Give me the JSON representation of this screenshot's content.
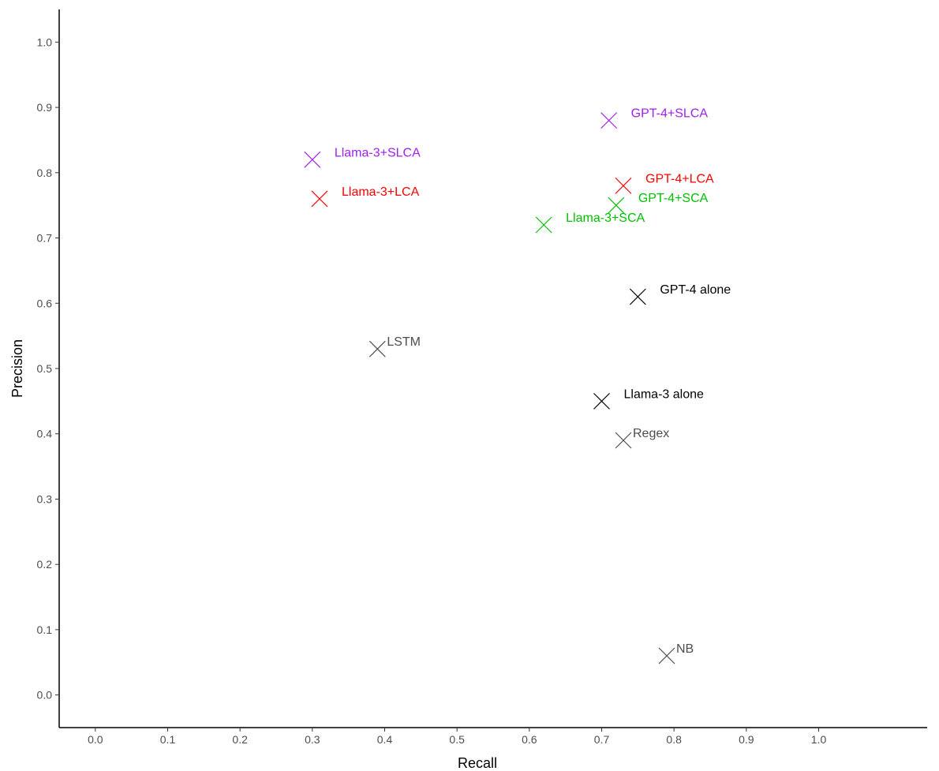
{
  "chart_data": {
    "type": "scatter",
    "title": "",
    "xlabel": "Recall",
    "ylabel": "Precision",
    "xlim": [
      -0.05,
      1.15
    ],
    "ylim": [
      -0.05,
      1.05
    ],
    "grid": false,
    "legend": "none",
    "x_ticks": [
      "0.0",
      "0.1",
      "0.2",
      "0.3",
      "0.4",
      "0.5",
      "0.6",
      "0.7",
      "0.8",
      "0.9",
      "1.0"
    ],
    "y_ticks": [
      "0.0",
      "0.1",
      "0.2",
      "0.3",
      "0.4",
      "0.5",
      "0.6",
      "0.7",
      "0.8",
      "0.9",
      "1.0"
    ],
    "marker": "x",
    "points": [
      {
        "label": "GPT-4+SLCA",
        "x": 0.71,
        "y": 0.88,
        "color": "#a020f0"
      },
      {
        "label": "Llama-3+SLCA",
        "x": 0.3,
        "y": 0.82,
        "color": "#a020f0"
      },
      {
        "label": "GPT-4+LCA",
        "x": 0.73,
        "y": 0.78,
        "color": "#ff0000"
      },
      {
        "label": "Llama-3+LCA",
        "x": 0.31,
        "y": 0.76,
        "color": "#ff0000"
      },
      {
        "label": "GPT-4+SCA",
        "x": 0.72,
        "y": 0.75,
        "color": "#00c000"
      },
      {
        "label": "Llama-3+SCA",
        "x": 0.62,
        "y": 0.72,
        "color": "#00c000"
      },
      {
        "label": "GPT-4 alone",
        "x": 0.75,
        "y": 0.61,
        "color": "#000000"
      },
      {
        "label": "LSTM",
        "x": 0.39,
        "y": 0.53,
        "color": "#4d4d4d"
      },
      {
        "label": "Llama-3 alone",
        "x": 0.7,
        "y": 0.45,
        "color": "#000000"
      },
      {
        "label": "Regex",
        "x": 0.73,
        "y": 0.39,
        "color": "#4d4d4d"
      },
      {
        "label": "NB",
        "x": 0.79,
        "y": 0.06,
        "color": "#4d4d4d"
      }
    ]
  }
}
